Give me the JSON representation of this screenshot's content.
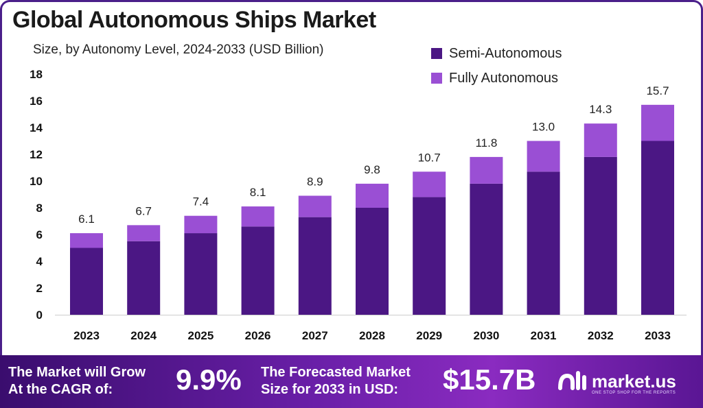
{
  "header": {
    "title": "Global Autonomous Ships Market",
    "subtitle": "Size, by Autonomy Level, 2024-2033 (USD Billion)"
  },
  "colors": {
    "semi": "#4b1784",
    "fully": "#9a4fd4",
    "axis": "#cccccc"
  },
  "chart_data": {
    "type": "bar",
    "stacked": true,
    "categories": [
      "2023",
      "2024",
      "2025",
      "2026",
      "2027",
      "2028",
      "2029",
      "2030",
      "2031",
      "2032",
      "2033"
    ],
    "series": [
      {
        "name": "Semi-Autonomous",
        "values": [
          5.0,
          5.5,
          6.1,
          6.6,
          7.3,
          8.0,
          8.8,
          9.8,
          10.7,
          11.8,
          13.0
        ]
      },
      {
        "name": "Fully Autonomous",
        "values": [
          1.1,
          1.2,
          1.3,
          1.5,
          1.6,
          1.8,
          1.9,
          2.0,
          2.3,
          2.5,
          2.7
        ]
      }
    ],
    "totals": [
      "6.1",
      "6.7",
      "7.4",
      "8.1",
      "8.9",
      "9.8",
      "10.7",
      "11.8",
      "13.0",
      "14.3",
      "15.7"
    ],
    "ylim": [
      0,
      18
    ],
    "yticks": [
      "0",
      "2",
      "4",
      "6",
      "8",
      "10",
      "12",
      "14",
      "16",
      "18"
    ],
    "legend_position": "top-right",
    "grid": false
  },
  "footer": {
    "cagr_text_line1": "The Market will Grow",
    "cagr_text_line2": "At the CAGR of:",
    "cagr_value": "9.9%",
    "forecast_text_line1": "The Forecasted Market",
    "forecast_text_line2": "Size for 2033 in USD:",
    "forecast_value": "$15.7B",
    "brand": "market.us",
    "brand_tagline": "ONE STOP SHOP FOR THE REPORTS"
  }
}
